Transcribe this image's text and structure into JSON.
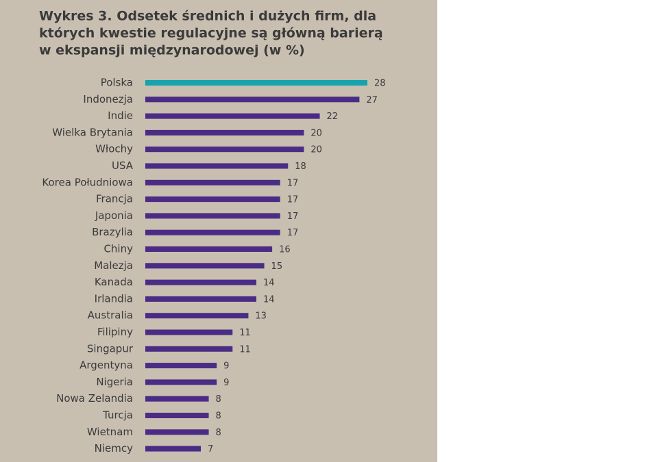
{
  "chart_data": {
    "type": "bar",
    "orientation": "horizontal",
    "title": [
      "Wykres 3. Odsetek średnich i dużych firm, dla",
      "których kwestie regulacyjne są główną barierą",
      "w ekspansji międzynarodowej (w %)"
    ],
    "categories": [
      "Polska",
      "Indonezja",
      "Indie",
      "Wielka Brytania",
      "Włochy",
      "USA",
      "Korea Południowa",
      "Francja",
      "Japonia",
      "Brazylia",
      "Chiny",
      "Malezja",
      "Kanada",
      "Irlandia",
      "Australia",
      "Filipiny",
      "Singapur",
      "Argentyna",
      "Nigeria",
      "Nowa Zelandia",
      "Turcja",
      "Wietnam",
      "Niemcy"
    ],
    "values": [
      28,
      27,
      22,
      20,
      20,
      18,
      17,
      17,
      17,
      17,
      16,
      15,
      14,
      14,
      13,
      11,
      11,
      9,
      9,
      8,
      8,
      8,
      7
    ],
    "colors": [
      "#16a3ad",
      "#4b2c84",
      "#4b2c84",
      "#4b2c84",
      "#4b2c84",
      "#4b2c84",
      "#4b2c84",
      "#4b2c84",
      "#4b2c84",
      "#4b2c84",
      "#4b2c84",
      "#4b2c84",
      "#4b2c84",
      "#4b2c84",
      "#4b2c84",
      "#4b2c84",
      "#4b2c84",
      "#4b2c84",
      "#4b2c84",
      "#4b2c84",
      "#4b2c84",
      "#4b2c84",
      "#4b2c84"
    ]
  }
}
